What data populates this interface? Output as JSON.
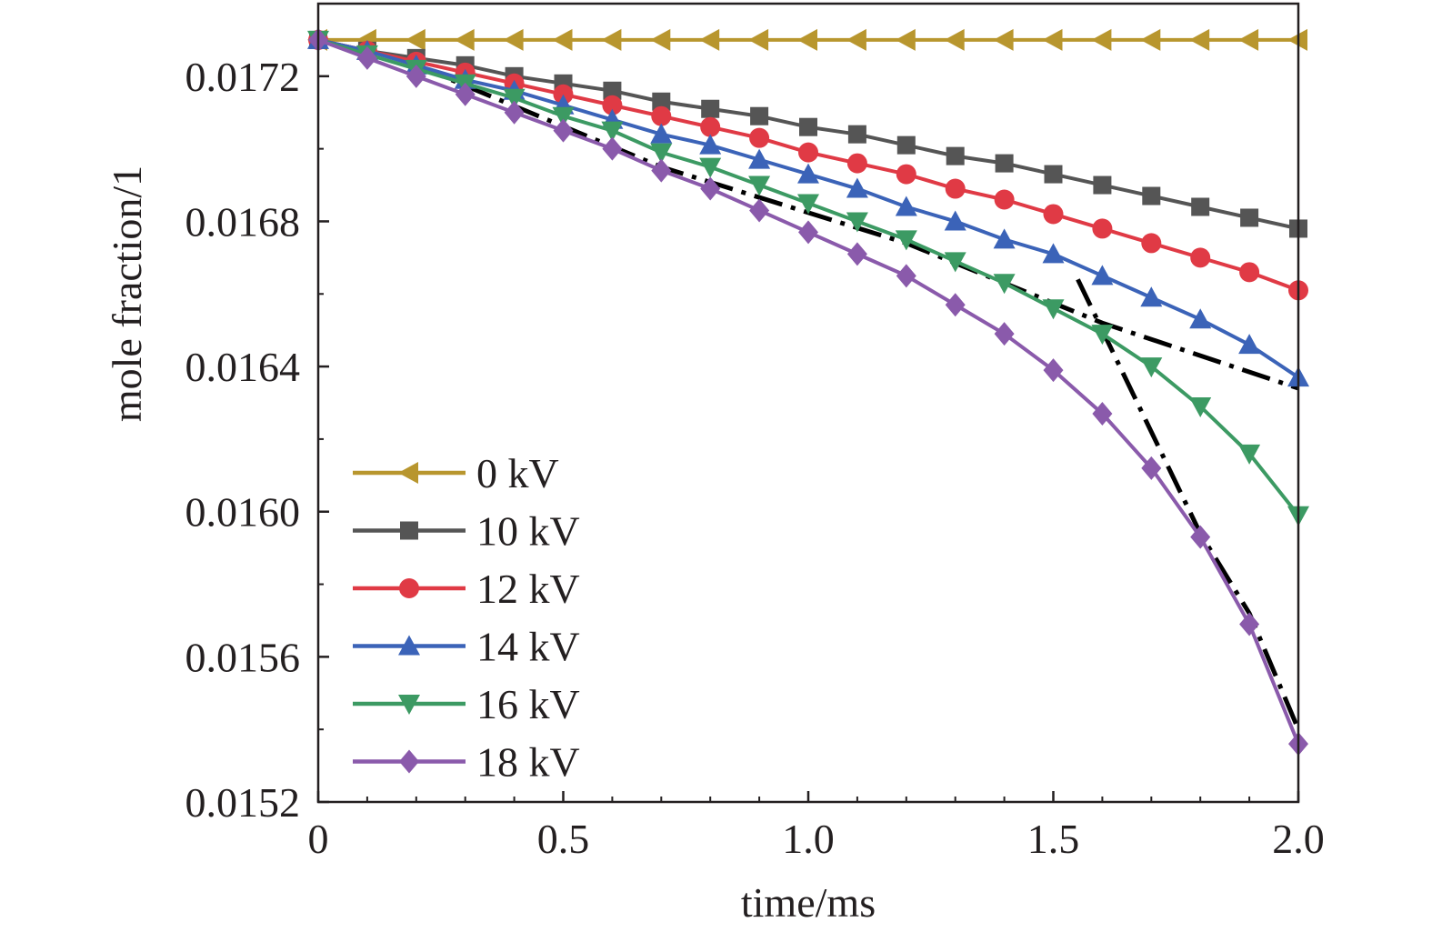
{
  "chart_data": {
    "type": "line",
    "xlabel": "time/ms",
    "ylabel": "mole fraction/1",
    "xlim": [
      0,
      2.0
    ],
    "ylim": [
      0.0152,
      0.0174
    ],
    "x_ticks": [
      0,
      0.5,
      1.0,
      1.5,
      2.0
    ],
    "x_tick_labels": [
      "0",
      "0.5",
      "1.0",
      "1.5",
      "2.0"
    ],
    "y_ticks": [
      0.0152,
      0.0156,
      0.016,
      0.0164,
      0.0168,
      0.0172
    ],
    "y_tick_labels": [
      "0.0152",
      "0.0156",
      "0.0160",
      "0.0164",
      "0.0168",
      "0.0172"
    ],
    "grid": false,
    "legend_position": "bottom-left",
    "x": [
      0,
      0.1,
      0.2,
      0.3,
      0.4,
      0.5,
      0.6,
      0.7,
      0.8,
      0.9,
      1.0,
      1.1,
      1.2,
      1.3,
      1.4,
      1.5,
      1.6,
      1.7,
      1.8,
      1.9,
      2.0
    ],
    "series": [
      {
        "name": "0 kV",
        "color": "#b8962e",
        "marker": "triangle-left",
        "values": [
          0.0173,
          0.0173,
          0.0173,
          0.0173,
          0.0173,
          0.0173,
          0.0173,
          0.0173,
          0.0173,
          0.0173,
          0.0173,
          0.0173,
          0.0173,
          0.0173,
          0.0173,
          0.0173,
          0.0173,
          0.0173,
          0.0173,
          0.0173,
          0.0173
        ]
      },
      {
        "name": "10 kV",
        "color": "#555555",
        "marker": "square",
        "values": [
          0.0173,
          0.01727,
          0.01725,
          0.01723,
          0.0172,
          0.01718,
          0.01716,
          0.01713,
          0.01711,
          0.01709,
          0.01706,
          0.01704,
          0.01701,
          0.01698,
          0.01696,
          0.01693,
          0.0169,
          0.01687,
          0.01684,
          0.01681,
          0.01678
        ]
      },
      {
        "name": "12 kV",
        "color": "#e03a45",
        "marker": "circle",
        "values": [
          0.0173,
          0.01727,
          0.01724,
          0.01721,
          0.01718,
          0.01715,
          0.01712,
          0.01709,
          0.01706,
          0.01703,
          0.01699,
          0.01696,
          0.01693,
          0.01689,
          0.01686,
          0.01682,
          0.01678,
          0.01674,
          0.0167,
          0.01666,
          0.01661
        ]
      },
      {
        "name": "14 kV",
        "color": "#3b63b8",
        "marker": "triangle-up",
        "values": [
          0.0173,
          0.01727,
          0.01723,
          0.01719,
          0.01716,
          0.01712,
          0.01708,
          0.01704,
          0.01701,
          0.01697,
          0.01693,
          0.01689,
          0.01684,
          0.0168,
          0.01675,
          0.01671,
          0.01665,
          0.01659,
          0.01653,
          0.01646,
          0.01637
        ]
      },
      {
        "name": "16 kV",
        "color": "#3c9a63",
        "marker": "triangle-down",
        "values": [
          0.0173,
          0.01726,
          0.01722,
          0.01718,
          0.01714,
          0.01709,
          0.01705,
          0.01699,
          0.01695,
          0.0169,
          0.01685,
          0.0168,
          0.01675,
          0.01669,
          0.01663,
          0.01656,
          0.01649,
          0.0164,
          0.01629,
          0.01616,
          0.01599
        ]
      },
      {
        "name": "18 kV",
        "color": "#8a5aab",
        "marker": "diamond",
        "values": [
          0.0173,
          0.01725,
          0.0172,
          0.01715,
          0.0171,
          0.01705,
          0.017,
          0.01694,
          0.01689,
          0.01683,
          0.01677,
          0.01671,
          0.01665,
          0.01657,
          0.01649,
          0.01639,
          0.01627,
          0.01612,
          0.01593,
          0.01569,
          0.01536
        ]
      }
    ],
    "annotations": [
      {
        "type": "dash-dot-line",
        "color": "#000000",
        "points": [
          [
            0.2,
            0.01723
          ],
          [
            0.7,
            0.01695
          ],
          [
            1.2,
            0.01674
          ],
          [
            1.6,
            0.01652
          ],
          [
            2.0,
            0.01634
          ]
        ]
      },
      {
        "type": "dash-dot-line",
        "color": "#000000",
        "points": [
          [
            1.55,
            0.01664
          ],
          [
            1.7,
            0.01622
          ],
          [
            1.8,
            0.01594
          ],
          [
            1.9,
            0.01572
          ],
          [
            2.0,
            0.0154
          ]
        ]
      }
    ]
  }
}
